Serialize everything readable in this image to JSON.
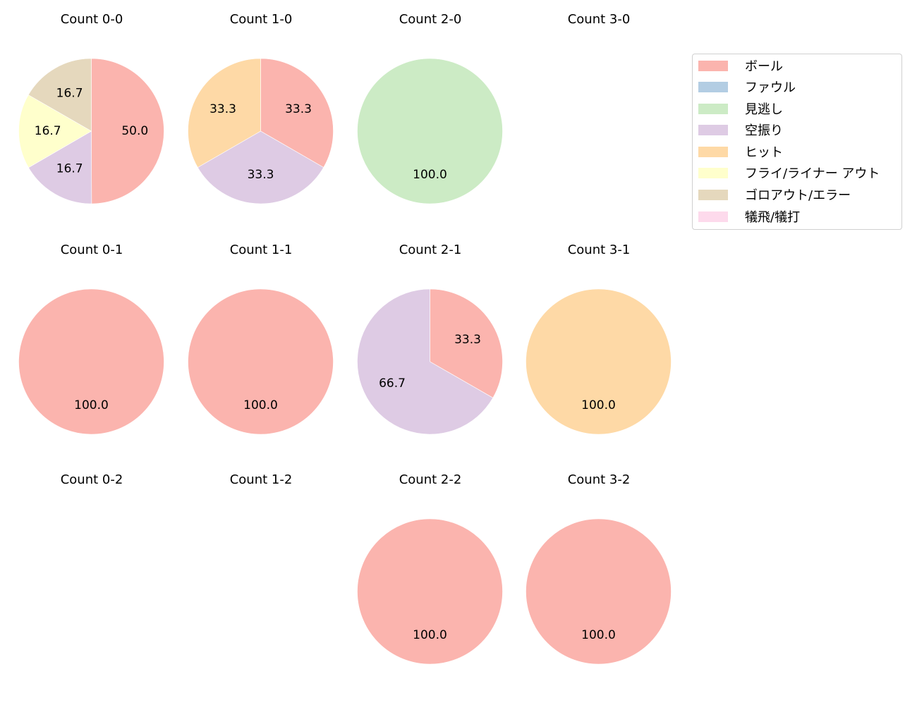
{
  "chart_data": {
    "type": "pie",
    "layout": "grid 3 rows x 4 columns of pie charts with shared legend",
    "legend": {
      "position": "upper right",
      "entries": [
        {
          "label": "ボール",
          "color": "#fbb4ae"
        },
        {
          "label": "ファウル",
          "color": "#b3cde3"
        },
        {
          "label": "見逃し",
          "color": "#ccebc5"
        },
        {
          "label": "空振り",
          "color": "#decbe4"
        },
        {
          "label": "ヒット",
          "color": "#fed9a6"
        },
        {
          "label": "フライ/ライナー アウト",
          "color": "#ffffcc"
        },
        {
          "label": "ゴロアウト/エラー",
          "color": "#e5d8bd"
        },
        {
          "label": "犠飛/犠打",
          "color": "#fddaec"
        }
      ]
    },
    "charts": [
      {
        "title": "Count 0-0",
        "row": 0,
        "col": 0,
        "slices": [
          {
            "label": "ボール",
            "value": 50.0
          },
          {
            "label": "空振り",
            "value": 16.7
          },
          {
            "label": "フライ/ライナー アウト",
            "value": 16.7
          },
          {
            "label": "ゴロアウト/エラー",
            "value": 16.7
          }
        ]
      },
      {
        "title": "Count 1-0",
        "row": 0,
        "col": 1,
        "slices": [
          {
            "label": "ボール",
            "value": 33.3
          },
          {
            "label": "空振り",
            "value": 33.3
          },
          {
            "label": "ヒット",
            "value": 33.3
          }
        ]
      },
      {
        "title": "Count 2-0",
        "row": 0,
        "col": 2,
        "slices": [
          {
            "label": "見逃し",
            "value": 100.0
          }
        ]
      },
      {
        "title": "Count 3-0",
        "row": 0,
        "col": 3,
        "slices": []
      },
      {
        "title": "Count 0-1",
        "row": 1,
        "col": 0,
        "slices": [
          {
            "label": "ボール",
            "value": 100.0
          }
        ]
      },
      {
        "title": "Count 1-1",
        "row": 1,
        "col": 1,
        "slices": [
          {
            "label": "ボール",
            "value": 100.0
          }
        ]
      },
      {
        "title": "Count 2-1",
        "row": 1,
        "col": 2,
        "slices": [
          {
            "label": "ボール",
            "value": 33.3
          },
          {
            "label": "空振り",
            "value": 66.7
          }
        ]
      },
      {
        "title": "Count 3-1",
        "row": 1,
        "col": 3,
        "slices": [
          {
            "label": "ヒット",
            "value": 100.0
          }
        ]
      },
      {
        "title": "Count 0-2",
        "row": 2,
        "col": 0,
        "slices": []
      },
      {
        "title": "Count 1-2",
        "row": 2,
        "col": 1,
        "slices": []
      },
      {
        "title": "Count 2-2",
        "row": 2,
        "col": 2,
        "slices": [
          {
            "label": "ボール",
            "value": 100.0
          }
        ]
      },
      {
        "title": "Count 3-2",
        "row": 2,
        "col": 3,
        "slices": [
          {
            "label": "ボール",
            "value": 100.0
          }
        ]
      }
    ]
  }
}
